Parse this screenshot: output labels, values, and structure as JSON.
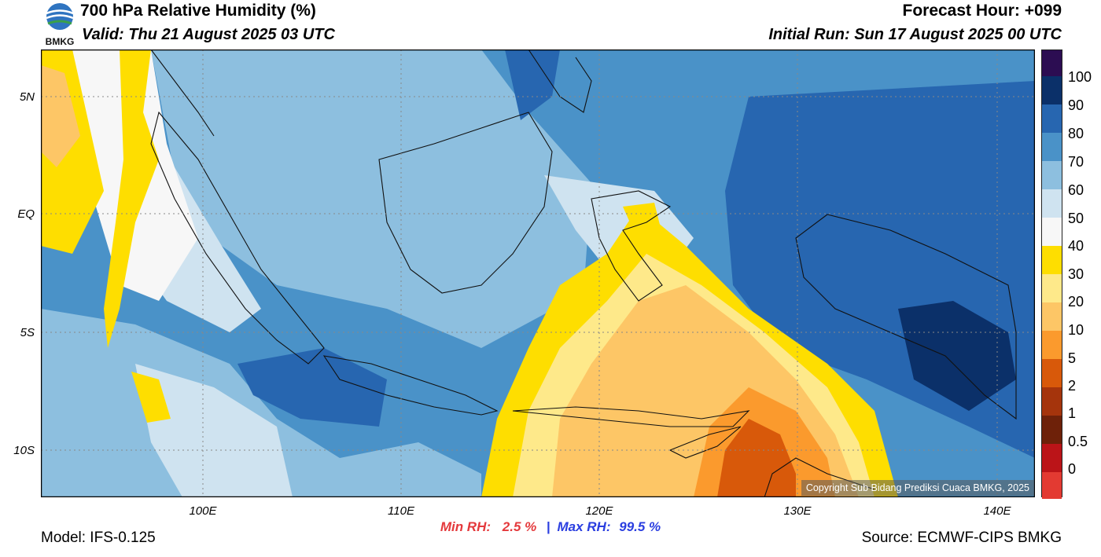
{
  "header": {
    "title": "700 hPa Relative Humidity (%)",
    "valid": "Valid: Thu 21 August 2025 03 UTC",
    "forecast_hour": "Forecast Hour: +099",
    "initial_run": "Initial Run: Sun 17 August 2025 00 UTC",
    "logo_text": "BMKG"
  },
  "map": {
    "lat_labels": [
      "5N",
      "EQ",
      "5S",
      "10S"
    ],
    "lon_labels": [
      "100E",
      "110E",
      "120E",
      "130E",
      "140E"
    ],
    "copyright": "Copyright Sub Bidang Prediksi Cuaca BMKG, 2025",
    "colors": {
      "ocean_humid": "#4a91c8",
      "deep_humid": "#2b69b0",
      "dry_yellow": "#fede00",
      "dry_orange": "#fdb84a"
    }
  },
  "stats": {
    "min_label": "Min RH:",
    "min_value": "2.5 %",
    "separator": "|",
    "max_label": "Max RH:",
    "max_value": "99.5 %"
  },
  "footer": {
    "model": "Model: IFS-0.125",
    "source": "Source: ECMWF-CIPS BMKG"
  },
  "colorbar": {
    "labels": [
      "100",
      "90",
      "80",
      "70",
      "60",
      "50",
      "40",
      "30",
      "20",
      "10",
      "5",
      "2",
      "1",
      "0.5",
      "0"
    ],
    "colors": [
      "#2c0d52",
      "#0b3069",
      "#2766b0",
      "#4a92c8",
      "#8dbfdf",
      "#cfe3f0",
      "#f7f7f7",
      "#fede00",
      "#fee98a",
      "#fdc666",
      "#fb9a2d",
      "#d8590a",
      "#a5340c",
      "#6e2109",
      "#bb1418",
      "#e33a32"
    ]
  }
}
